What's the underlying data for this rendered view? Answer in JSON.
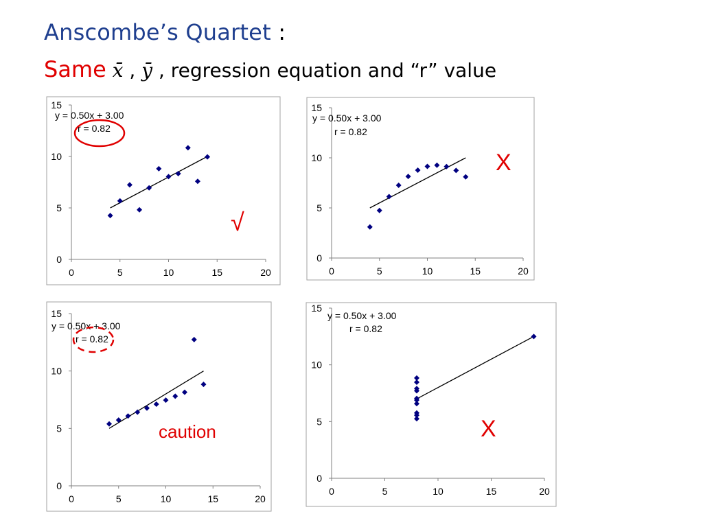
{
  "slide": {
    "title_main": "Anscombe’s Quartet",
    "title_colon": ":",
    "subtitle_same": "Same",
    "subtitle_xbar": "x̄",
    "subtitle_sep": ",",
    "subtitle_ybar": "ȳ",
    "subtitle_rest": ", regression equation and “r” value"
  },
  "colors": {
    "title": "#1f3f8f",
    "accent": "#e00000",
    "marker": "#000080"
  },
  "chart_data": [
    {
      "type": "scatter",
      "equation": "y = 0.50x + 3.00",
      "r_label": "r = 0.82",
      "xlim": [
        0,
        20
      ],
      "ylim": [
        0,
        15
      ],
      "xticks": [
        "0",
        "5",
        "10",
        "15",
        "20"
      ],
      "yticks": [
        "0",
        "5",
        "10",
        "15"
      ],
      "points": [
        [
          4,
          4.26
        ],
        [
          5,
          5.68
        ],
        [
          6,
          7.24
        ],
        [
          7,
          4.82
        ],
        [
          8,
          6.95
        ],
        [
          9,
          8.81
        ],
        [
          10,
          8.04
        ],
        [
          11,
          8.33
        ],
        [
          12,
          10.84
        ],
        [
          13,
          7.58
        ],
        [
          14,
          9.96
        ]
      ],
      "regression": [
        [
          4,
          5
        ],
        [
          14,
          10
        ]
      ],
      "annotation": "√",
      "r_highlight": "solid"
    },
    {
      "type": "scatter",
      "equation": "y = 0.50x + 3.00",
      "r_label": "r = 0.82",
      "xlim": [
        0,
        20
      ],
      "ylim": [
        0,
        15
      ],
      "xticks": [
        "0",
        "5",
        "10",
        "15",
        "20"
      ],
      "yticks": [
        "0",
        "5",
        "10",
        "15"
      ],
      "points": [
        [
          4,
          3.1
        ],
        [
          5,
          4.74
        ],
        [
          6,
          6.13
        ],
        [
          7,
          7.26
        ],
        [
          8,
          8.14
        ],
        [
          9,
          8.77
        ],
        [
          10,
          9.14
        ],
        [
          11,
          9.26
        ],
        [
          12,
          9.13
        ],
        [
          13,
          8.74
        ],
        [
          14,
          8.1
        ]
      ],
      "regression": [
        [
          4,
          5
        ],
        [
          14,
          10
        ]
      ],
      "annotation": "X",
      "r_highlight": "none"
    },
    {
      "type": "scatter",
      "equation": "y = 0.50x + 3.00",
      "r_label": "r = 0.82",
      "xlim": [
        0,
        20
      ],
      "ylim": [
        0,
        15
      ],
      "xticks": [
        "0",
        "5",
        "10",
        "15",
        "20"
      ],
      "yticks": [
        "0",
        "5",
        "10",
        "15"
      ],
      "points": [
        [
          4,
          5.39
        ],
        [
          5,
          5.73
        ],
        [
          6,
          6.08
        ],
        [
          7,
          6.42
        ],
        [
          8,
          6.77
        ],
        [
          9,
          7.11
        ],
        [
          10,
          7.46
        ],
        [
          11,
          7.81
        ],
        [
          12,
          8.15
        ],
        [
          13,
          12.74
        ],
        [
          14,
          8.84
        ]
      ],
      "regression": [
        [
          4,
          5
        ],
        [
          14,
          10
        ]
      ],
      "annotation": "caution",
      "r_highlight": "dashed"
    },
    {
      "type": "scatter",
      "equation": "y = 0.50x + 3.00",
      "r_label": "r = 0.82",
      "xlim": [
        0,
        20
      ],
      "ylim": [
        0,
        15
      ],
      "xticks": [
        "0",
        "5",
        "10",
        "15",
        "20"
      ],
      "yticks": [
        "0",
        "5",
        "10",
        "15"
      ],
      "points": [
        [
          8,
          6.58
        ],
        [
          8,
          5.76
        ],
        [
          8,
          7.71
        ],
        [
          8,
          8.84
        ],
        [
          8,
          8.47
        ],
        [
          8,
          7.04
        ],
        [
          8,
          5.25
        ],
        [
          19,
          12.5
        ],
        [
          8,
          5.56
        ],
        [
          8,
          7.91
        ],
        [
          8,
          6.89
        ]
      ],
      "regression": [
        [
          8,
          7
        ],
        [
          19,
          12.5
        ]
      ],
      "annotation": "X",
      "r_highlight": "none"
    }
  ]
}
